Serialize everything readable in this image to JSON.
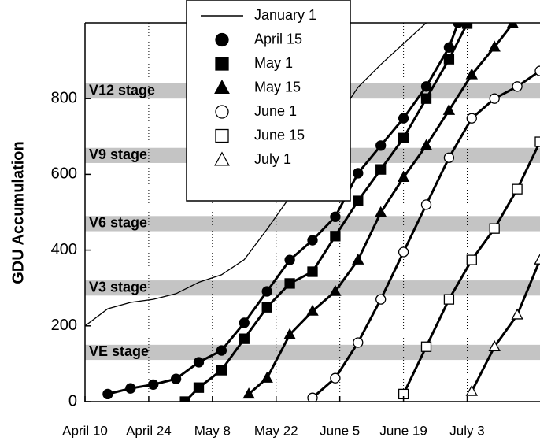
{
  "chart_data": {
    "type": "line",
    "ylabel": "GDU Accumulation",
    "xlim": [
      100,
      200
    ],
    "ylim": [
      0,
      1000
    ],
    "xticks": [
      {
        "value": 100,
        "label": "April 10"
      },
      {
        "value": 114,
        "label": "April 24"
      },
      {
        "value": 128,
        "label": "May 8"
      },
      {
        "value": 142,
        "label": "May 22"
      },
      {
        "value": 156,
        "label": "June 5"
      },
      {
        "value": 170,
        "label": "June 19"
      },
      {
        "value": 184,
        "label": "July 3"
      }
    ],
    "yticks": [
      0,
      200,
      400,
      600,
      800
    ],
    "xgrid": true,
    "bands": [
      {
        "label": "VE stage",
        "range": [
          110,
          150
        ]
      },
      {
        "label": "V3 stage",
        "range": [
          280,
          320
        ]
      },
      {
        "label": "V6 stage",
        "range": [
          450,
          490
        ]
      },
      {
        "label": "V9 stage",
        "range": [
          630,
          670
        ]
      },
      {
        "label": "V12 stage",
        "range": [
          800,
          840
        ]
      }
    ],
    "series": [
      {
        "name": "January 1",
        "color": "#000000",
        "marker": "none",
        "x": [
          100,
          105,
          110,
          115,
          120,
          125,
          130,
          135,
          140,
          145,
          150,
          155,
          160,
          165,
          170,
          175
        ],
        "values": [
          200,
          245,
          262,
          270,
          285,
          315,
          335,
          375,
          455,
          540,
          640,
          740,
          830,
          890,
          945,
          1000
        ]
      },
      {
        "name": "April 15",
        "color": "#000000",
        "marker": "circle",
        "x": [
          105,
          110,
          115,
          120,
          125,
          130,
          135,
          140,
          145,
          150,
          155,
          160,
          165,
          170,
          175,
          180,
          182
        ],
        "values": [
          20,
          35,
          45,
          60,
          104,
          135,
          208,
          291,
          374,
          426,
          488,
          603,
          676,
          748,
          832,
          935,
          1000
        ]
      },
      {
        "name": "May 1",
        "color": "#000000",
        "marker": "square",
        "x": [
          122,
          125,
          130,
          135,
          140,
          145,
          150,
          155,
          160,
          165,
          170,
          175,
          180,
          184
        ],
        "values": [
          0,
          37,
          83,
          166,
          249,
          312,
          343,
          437,
          530,
          613,
          696,
          800,
          904,
          998
        ]
      },
      {
        "name": "May 15",
        "color": "#000000",
        "marker": "triangle",
        "x": [
          136,
          140,
          145,
          150,
          155,
          160,
          165,
          170,
          175,
          180,
          185,
          190,
          194
        ],
        "values": [
          20,
          62,
          177,
          239,
          291,
          374,
          499,
          592,
          676,
          769,
          863,
          936,
          998
        ]
      },
      {
        "name": "June 1",
        "color": "#000000",
        "marker": "circle-open",
        "x": [
          150,
          155,
          160,
          165,
          170,
          175,
          180,
          185,
          190,
          195,
          200
        ],
        "values": [
          10,
          62,
          156,
          270,
          395,
          520,
          644,
          748,
          800,
          832,
          873
        ]
      },
      {
        "name": "June 15",
        "color": "#000000",
        "marker": "square-open",
        "x": [
          170,
          175,
          180,
          185,
          190,
          195,
          200
        ],
        "values": [
          20,
          145,
          270,
          374,
          457,
          561,
          686
        ]
      },
      {
        "name": "July 1",
        "color": "#000000",
        "marker": "triangle-open",
        "x": [
          185,
          190,
          195,
          200
        ],
        "values": [
          27,
          145,
          229,
          374
        ]
      }
    ]
  }
}
